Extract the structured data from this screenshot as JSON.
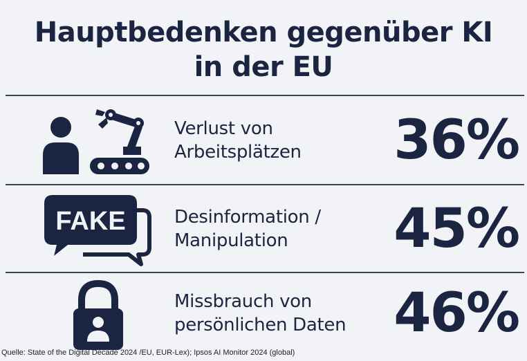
{
  "title": {
    "line1": "Hauptbedenken gegenüber KI",
    "line2": "in der EU"
  },
  "rows": [
    {
      "icon": "worker-robot-arm-icon",
      "label_line1": "Verlust von",
      "label_line2": "Arbeitsplätzen",
      "percent": "36%"
    },
    {
      "icon": "fake-speech-bubble-icon",
      "icon_text": "FAKE",
      "label_line1": "Desinformation /",
      "label_line2": "Manipulation",
      "percent": "45%"
    },
    {
      "icon": "padlock-person-icon",
      "label_line1": "Missbrauch von",
      "label_line2": "persönlichen Daten",
      "percent": "46%"
    }
  ],
  "source": "Quelle: State of the Digital Decade 2024 /EU, EUR-Lex); Ipsos AI Monitor 2024 (global)",
  "colors": {
    "background": "#f2f3f6",
    "text": "#1b2541",
    "rule": "#39425a"
  }
}
